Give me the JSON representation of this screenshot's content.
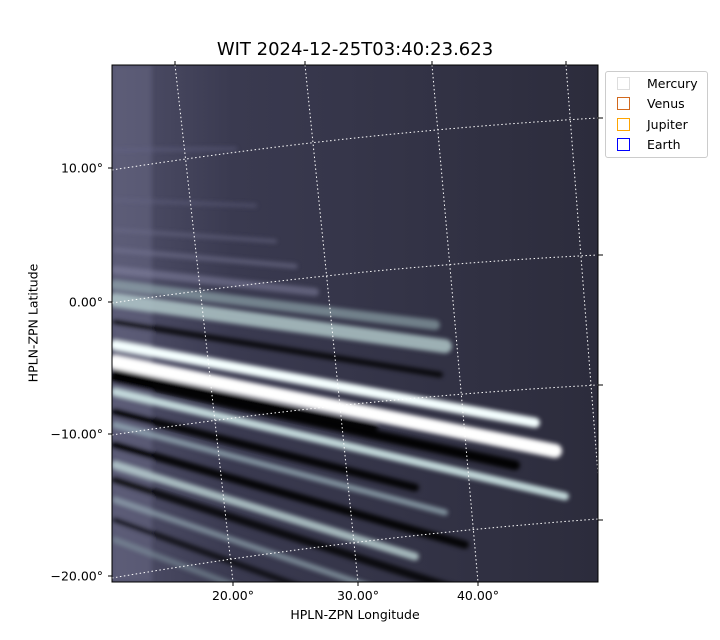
{
  "chart_data": {
    "type": "heatmap",
    "title": "WIT 2024-12-25T03:40:23.623",
    "xlabel": "HPLN-ZPN Longitude",
    "ylabel": "HPLN-ZPN Latitude",
    "xticks": [
      "20.00°",
      "30.00°",
      "40.00°"
    ],
    "yticks": [
      "10.00°",
      "0.00°",
      "−10.00°",
      "−20.00°"
    ],
    "colormap": "bone",
    "grid": true,
    "legend_placement": "outside-top-right",
    "legend": [
      {
        "name": "Mercury",
        "color": "#dddddd"
      },
      {
        "name": "Venus",
        "color": "#d2691e"
      },
      {
        "name": "Jupiter",
        "color": "#ffa500"
      },
      {
        "name": "Earth",
        "color": "#0000ff"
      }
    ]
  }
}
